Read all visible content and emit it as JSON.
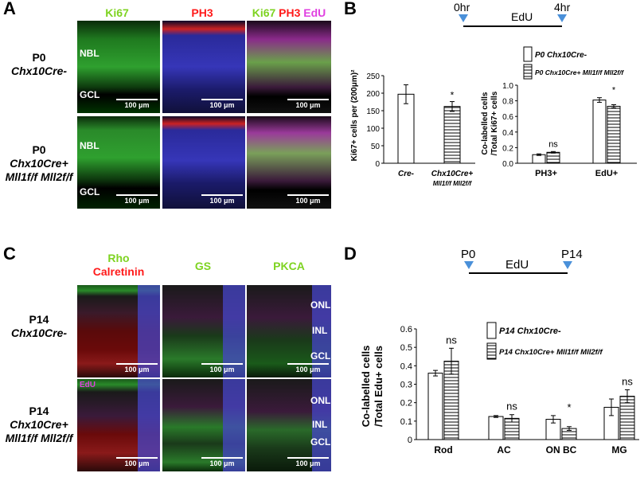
{
  "panelA": {
    "letter": "A",
    "headers": {
      "ki67": "Ki67",
      "ph3": "PH3",
      "merge": {
        "ki67": "Ki67",
        "ph3": "PH3",
        "edu": "EdU"
      }
    },
    "rows": [
      {
        "line1": "P0",
        "line2": "Chx10Cre-"
      },
      {
        "line1": "P0",
        "line2": "Chx10Cre+",
        "line3": "Mll1f/f Mll2f/f"
      }
    ],
    "layer_labels": {
      "nbl": "NBL",
      "gcl": "GCL"
    },
    "scale": "100 μm"
  },
  "panelB": {
    "letter": "B",
    "timeline": {
      "start": "0hr",
      "label": "EdU",
      "end": "4hr"
    }
  },
  "panelC": {
    "letter": "C",
    "headers": {
      "rho": "Rho",
      "calretinin": "Calretinin",
      "gs": "GS",
      "pkca": "PKCA"
    },
    "rows": [
      {
        "line1": "P14",
        "line2": "Chx10Cre-"
      },
      {
        "line1": "P14",
        "line2": "Chx10Cre+",
        "line3": "Mll1f/f Mll2f/f"
      }
    ],
    "edu_tag": "EdU",
    "layer_labels": {
      "onl": "ONL",
      "inl": "INL",
      "gcl": "GCL"
    },
    "scale": "100 μm"
  },
  "panelD": {
    "letter": "D",
    "timeline": {
      "start": "P0",
      "label": "EdU",
      "end": "P14"
    }
  },
  "colors": {
    "green": "#7ed321",
    "red": "#ff1a1a",
    "magenta": "#e040e0",
    "blue_arrow": "#4a90d9"
  },
  "chart_data": [
    {
      "type": "bar",
      "ylabel": "Ki67+ cells per (200μm)²",
      "ylim": [
        0,
        250
      ],
      "yticks": [
        "0",
        "50",
        "100",
        "150",
        "200",
        "250"
      ],
      "categories": [
        "Cre-",
        "Chx10Cre+ Mll1f/f Mll2f/f"
      ],
      "values": [
        197,
        162
      ],
      "errors": [
        27,
        14
      ],
      "annotations": [
        "",
        "*"
      ]
    },
    {
      "type": "bar",
      "ylabel": "Co-labelled cells /Total Ki67+ cells",
      "ylim": [
        0,
        1
      ],
      "yticks": [
        "0.0",
        "0.2",
        "0.4",
        "0.6",
        "0.8",
        "1.0"
      ],
      "categories": [
        "PH3+",
        "EdU+"
      ],
      "series": [
        {
          "name": "P0 Chx10Cre-",
          "values": [
            0.11,
            0.81
          ],
          "errors": [
            0.01,
            0.03
          ]
        },
        {
          "name": "P0 Chx10Cre+ Mll1f/f Mll2f/f",
          "values": [
            0.14,
            0.73
          ],
          "errors": [
            0.01,
            0.02
          ]
        }
      ],
      "annotations": [
        "ns",
        "*"
      ]
    },
    {
      "type": "bar",
      "ylabel": "Co-labelled cells /Total Edu+ cells",
      "ylim": [
        0,
        0.6
      ],
      "yticks": [
        "0",
        "0.1",
        "0.2",
        "0.3",
        "0.4",
        "0.5",
        "0.6"
      ],
      "categories": [
        "Rod",
        "AC",
        "ON BC",
        "MG"
      ],
      "series": [
        {
          "name": "P14 Chx10Cre-",
          "values": [
            0.36,
            0.125,
            0.11,
            0.175
          ],
          "errors": [
            0.015,
            0.005,
            0.02,
            0.045
          ]
        },
        {
          "name": "P14 Chx10Cre+ Mll1f/f Mll2f/f",
          "values": [
            0.425,
            0.115,
            0.06,
            0.235
          ],
          "errors": [
            0.07,
            0.02,
            0.01,
            0.035
          ]
        }
      ],
      "annotations": [
        "ns",
        "ns",
        "*",
        "ns"
      ]
    }
  ]
}
